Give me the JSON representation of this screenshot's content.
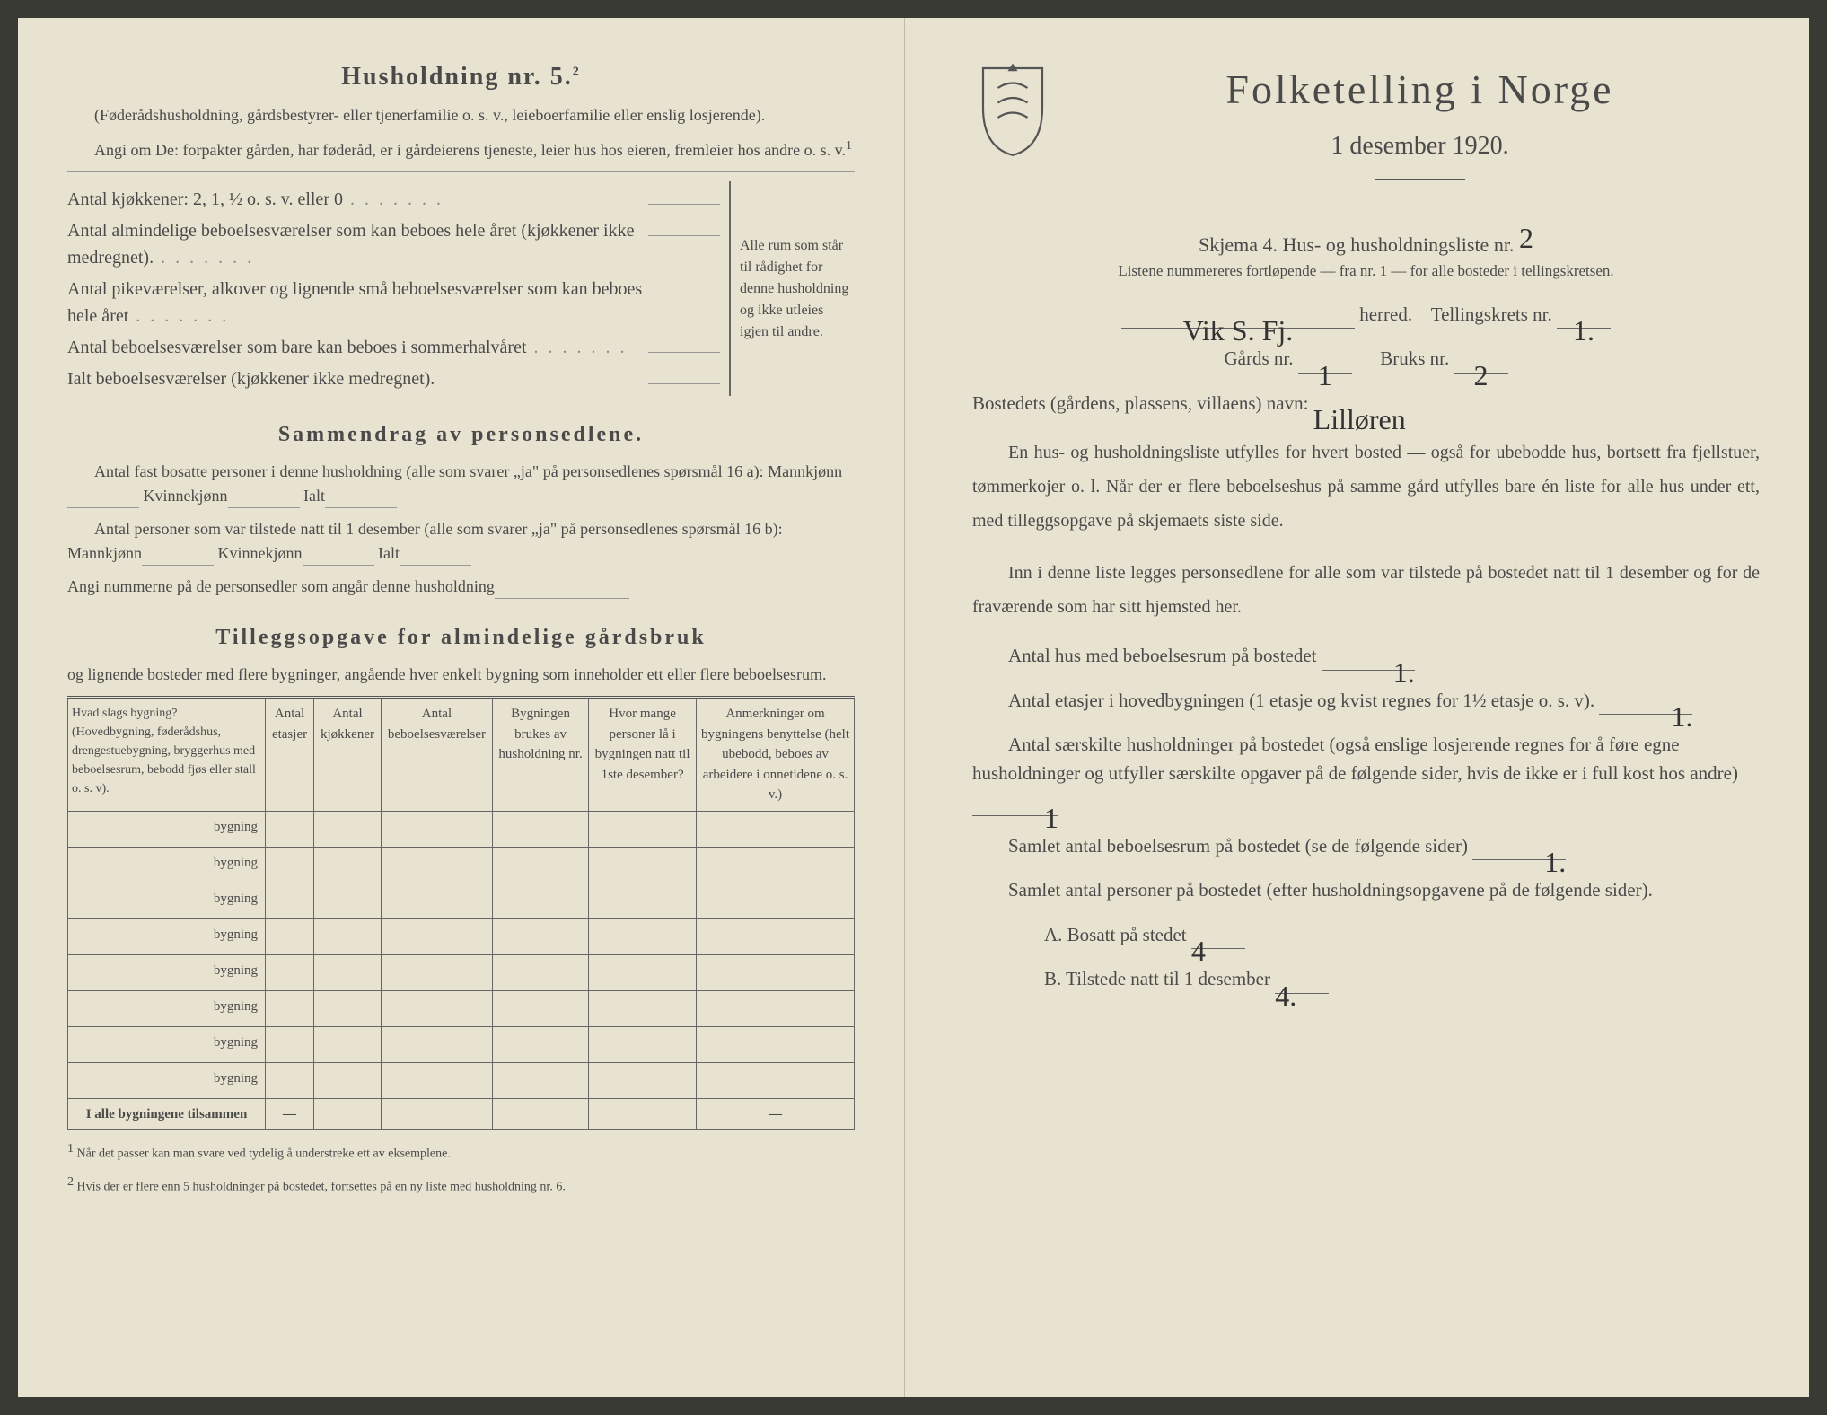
{
  "left": {
    "title": "Husholdning nr. 5.",
    "title_sup": "2",
    "sub1": "(Føderådshusholdning, gårdsbestyrer- eller tjenerfamilie o. s. v., leieboerfamilie eller enslig losjerende).",
    "sub2": "Angi om De: forpakter gården, har føderåd, er i gårdeierens tjeneste, leier hus hos eieren, fremleier hos andre o. s. v.",
    "sub2_sup": "1",
    "row_kitchen": "Antal kjøkkener: 2, 1, ½ o. s. v. eller 0",
    "row_alm": "Antal almindelige beboelsesværelser som kan beboes hele året (kjøkkener ikke medregnet).",
    "row_pike": "Antal pikeværelser, alkover og lignende små beboelsesværelser som kan beboes hele året",
    "row_sommer": "Antal beboelsesværelser som bare kan beboes i sommerhalvåret",
    "row_ialt": "Ialt beboelsesværelser (kjøkkener ikke medregnet).",
    "bracket_text": "Alle rum som står til rådighet for denne husholdning og ikke utleies igjen til andre.",
    "samm_title": "Sammendrag av personsedlene.",
    "samm1": "Antal fast bosatte personer i denne husholdning (alle som svarer „ja\" på personsedlenes spørsmål 16 a): Mannkjønn",
    "kvinnekjonn": "Kvinnekjønn",
    "ialt_lbl": "Ialt",
    "samm2": "Antal personer som var tilstede natt til 1 desember (alle som svarer „ja\" på personsedlenes spørsmål 16 b): Mannkjønn",
    "samm3": "Angi nummerne på de personsedler som angår denne husholdning",
    "tillegg_title": "Tilleggsopgave for almindelige gårdsbruk",
    "tillegg_sub": "og lignende bosteder med flere bygninger, angående hver enkelt bygning som inneholder ett eller flere beboelsesrum.",
    "table": {
      "headers": [
        "Hvad slags bygning? (Hovedbygning, føderådshus, drengestuebygning, bryggerhus med beboelsesrum, bebodd fjøs eller stall o. s. v).",
        "Antal etasjer",
        "Antal kjøkkener",
        "Antal beboelsesværelser",
        "Bygningen brukes av husholdning nr.",
        "Hvor mange personer lå i bygningen natt til 1ste desember?",
        "Anmerkninger om bygningens benyttelse (helt ubebodd, beboes av arbeidere i onnetidene o. s. v.)"
      ],
      "row_label": "bygning",
      "row_count": 8,
      "total_label": "I alle bygningene tilsammen",
      "dashes": [
        "—",
        "",
        "",
        "",
        "",
        "—"
      ]
    },
    "foot1": "Når det passer kan man svare ved tydelig å understreke ett av eksemplene.",
    "foot2": "Hvis der er flere enn 5 husholdninger på bostedet, fortsettes på en ny liste med husholdning nr. 6.",
    "foot1_num": "1",
    "foot2_num": "2"
  },
  "right": {
    "main_title": "Folketelling i Norge",
    "date": "1 desember 1920.",
    "skjema": "Skjema 4. Hus- og husholdningsliste nr.",
    "skjema_val": "2",
    "listene": "Listene nummereres fortløpende — fra nr. 1 — for alle bosteder i tellingskretsen.",
    "herred_val": "Vik S. Fj.",
    "herred_lbl": "herred.",
    "tellingskrets_lbl": "Tellingskrets nr.",
    "tellingskrets_val": "1.",
    "gards_lbl": "Gårds nr.",
    "gards_val": "1",
    "bruks_lbl": "Bruks nr.",
    "bruks_val": "2",
    "bosted_lbl": "Bostedets (gårdens, plassens, villaens) navn:",
    "bosted_val": "Lilløren",
    "para1": "En hus- og husholdningsliste utfylles for hvert bosted — også for ubebodde hus, bortsett fra fjellstuer, tømmerkojer o. l. Når der er flere beboelseshus på samme gård utfylles bare én liste for alle hus under ett, med tilleggsopgave på skjemaets siste side.",
    "para2": "Inn i denne liste legges personsedlene for alle som var tilstede på bostedet natt til 1 desember og for de fraværende som har sitt hjemsted her.",
    "q1_lbl": "Antal hus med beboelsesrum på bostedet",
    "q1_val": "1.",
    "q2_lbl": "Antal etasjer i hovedbygningen (1 etasje og kvist regnes for 1½ etasje o. s. v).",
    "q2_val": "1.",
    "q3_lbl": "Antal særskilte husholdninger på bostedet (også enslige losjerende regnes for å føre egne husholdninger og utfyller særskilte opgaver på de følgende sider, hvis de ikke er i full kost hos andre)",
    "q3_val": "1",
    "q4_lbl": "Samlet antal beboelsesrum på bostedet (se de følgende sider)",
    "q4_val": "1.",
    "q5_lbl": "Samlet antal personer på bostedet (efter husholdningsopgavene på de følgende sider).",
    "qA_lbl": "A. Bosatt på stedet",
    "qA_val": "4",
    "qB_lbl": "B. Tilstede natt til 1 desember",
    "qB_val": "4."
  },
  "colors": {
    "paper": "#e8e3d0",
    "text": "#4a4a4a",
    "ink": "#333333"
  }
}
